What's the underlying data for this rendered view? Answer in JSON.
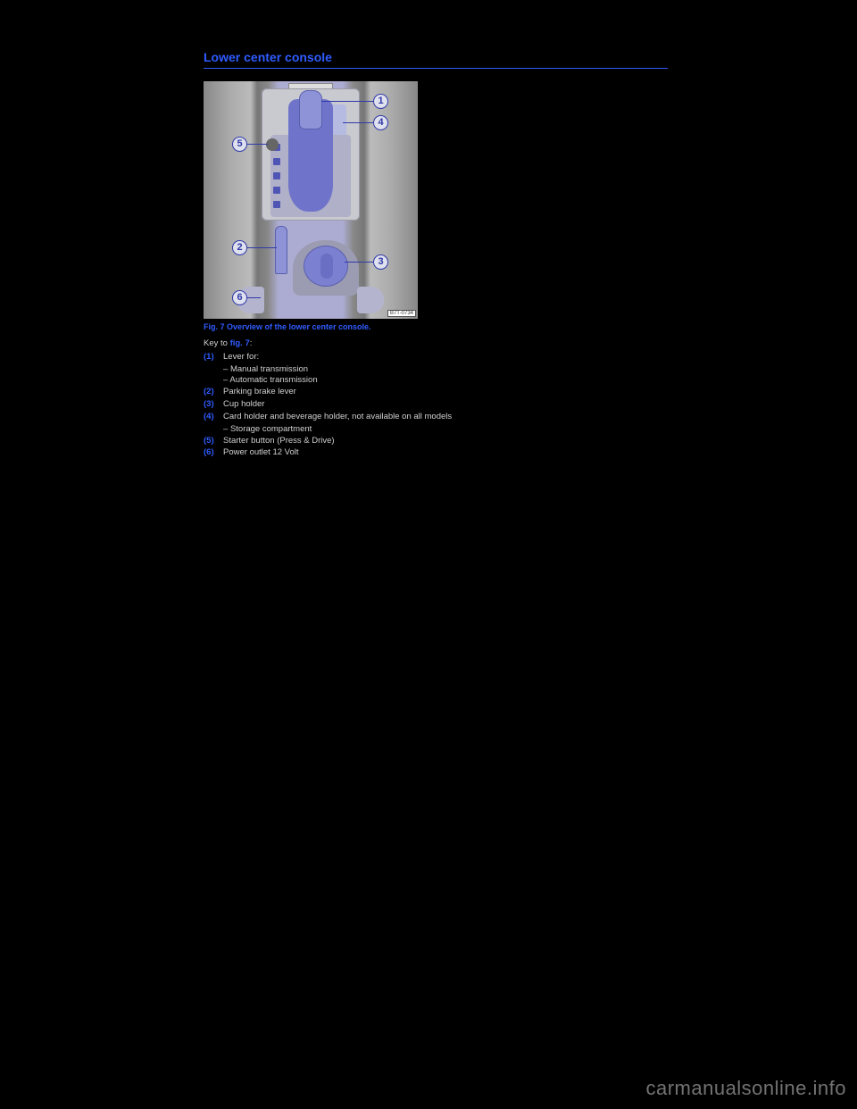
{
  "heading": "Lower center console",
  "caption": "Fig. 7 Overview of the lower center console.",
  "keyline_prefix": "Key to ",
  "keyline_ref": "fig. 7",
  "keyline_suffix": ":",
  "diagram_wmark": "B7T-0734",
  "callouts": {
    "c1": "1",
    "c2": "2",
    "c3": "3",
    "c4": "4",
    "c5": "5",
    "c6": "6"
  },
  "items": [
    {
      "num": "(1)",
      "text": "Lever for:",
      "subs": [
        "Manual transmission",
        "Automatic transmission"
      ]
    },
    {
      "num": "(2)",
      "text": "Parking brake lever"
    },
    {
      "num": "(3)",
      "text": "Cup holder"
    },
    {
      "num": "(4)",
      "text": "Card holder and beverage holder, not available on all models",
      "subs": [
        "Storage compartment"
      ]
    },
    {
      "num": "(5)",
      "text": "Starter button (Press & Drive)"
    },
    {
      "num": "(6)",
      "text": "Power outlet 12 Volt"
    }
  ],
  "watermark": "carmanualsonline.info"
}
